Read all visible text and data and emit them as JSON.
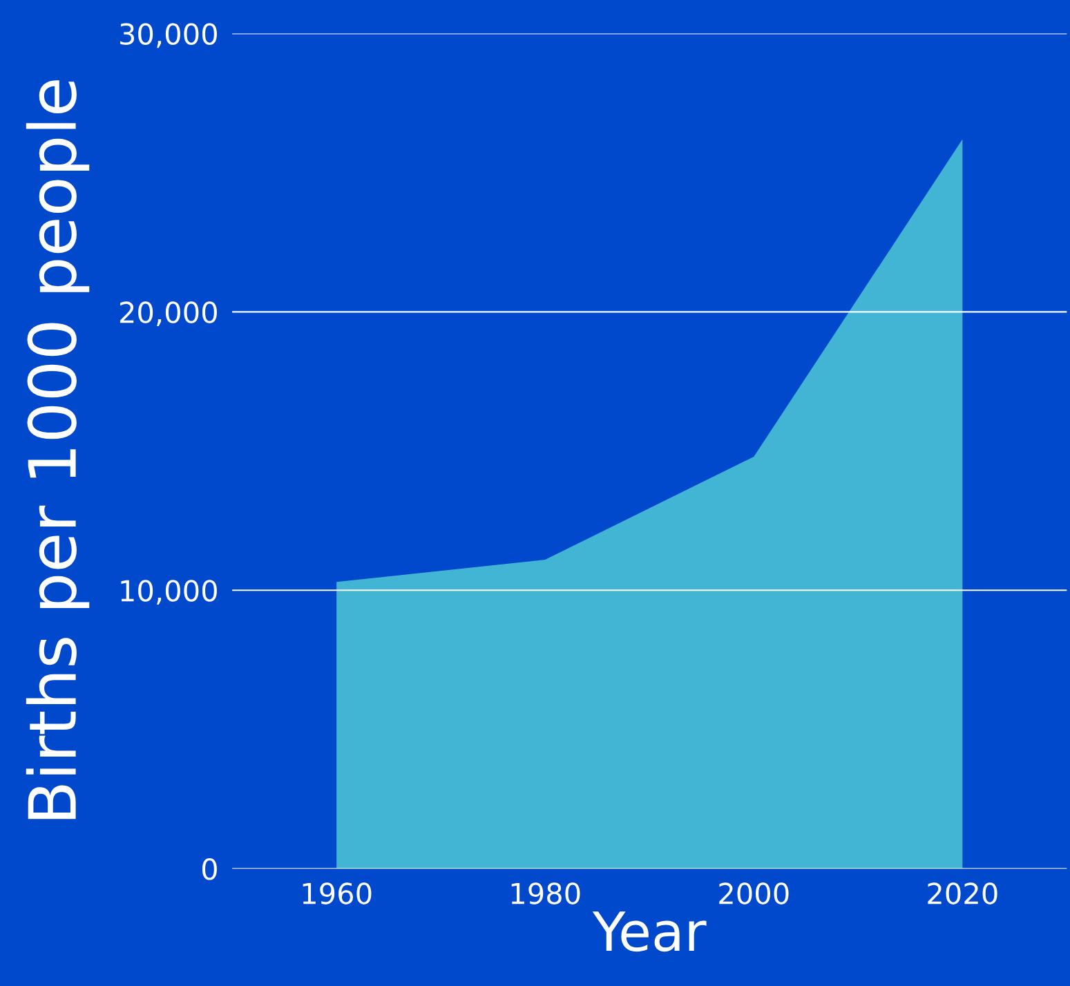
{
  "chart_data": {
    "type": "area",
    "xlabel": "Year",
    "ylabel": "Births per 1000 people",
    "x": [
      1960,
      1980,
      2000,
      2020
    ],
    "series": [
      {
        "color": "#42b5d5",
        "values": [
          10300,
          11100,
          14800,
          26200
        ]
      }
    ],
    "xlim": [
      1950,
      2030
    ],
    "xticks": [
      1960,
      1980,
      2000,
      2020
    ],
    "ylim": [
      0,
      30000
    ],
    "yticks": [
      {
        "value": 0,
        "label": "0"
      },
      {
        "value": 10000,
        "label": "10,000"
      },
      {
        "value": 20000,
        "label": "20,000"
      },
      {
        "value": 30000,
        "label": "30,000"
      }
    ],
    "grid": "y"
  }
}
